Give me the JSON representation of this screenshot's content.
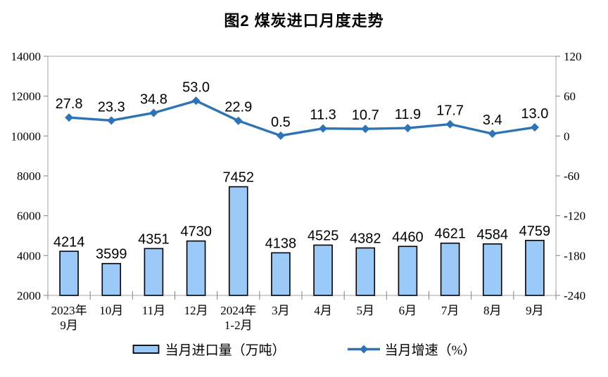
{
  "chart_data": {
    "type": "combo",
    "title": "图2 煤炭进口月度走势",
    "categories": [
      [
        "2023年",
        "9月"
      ],
      [
        "10月"
      ],
      [
        "11月"
      ],
      [
        "12月"
      ],
      [
        "2024年",
        "1-2月"
      ],
      [
        "3月"
      ],
      [
        "4月"
      ],
      [
        "5月"
      ],
      [
        "6月"
      ],
      [
        "7月"
      ],
      [
        "8月"
      ],
      [
        "9月"
      ]
    ],
    "series": [
      {
        "name": "当月进口量（万吨）",
        "type": "bar",
        "axis": "left",
        "values": [
          4214,
          3599,
          4351,
          4730,
          7452,
          4138,
          4525,
          4382,
          4460,
          4621,
          4584,
          4759
        ]
      },
      {
        "name": "当月增速（%）",
        "type": "line",
        "axis": "right",
        "values": [
          27.8,
          23.3,
          34.8,
          53.0,
          22.9,
          0.5,
          11.3,
          10.7,
          11.9,
          17.7,
          3.4,
          13.0
        ]
      }
    ],
    "left_axis": {
      "min": 2000,
      "max": 14000,
      "step": 2000
    },
    "right_axis": {
      "min": -240,
      "max": 120,
      "step": 60
    },
    "grid": false,
    "legend_position": "bottom",
    "colors": {
      "bar_fill": "#9CCAF8",
      "bar_stroke": "#000000",
      "line": "#2E74B5",
      "axis": "#A6A6A6",
      "tick": "#808080",
      "text": "#000000"
    }
  }
}
